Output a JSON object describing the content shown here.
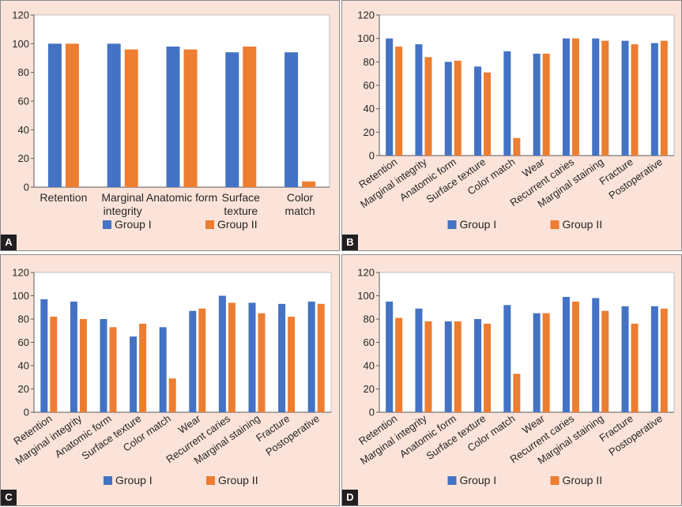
{
  "colors": {
    "group1": "#4472c4",
    "group2": "#ed7d31"
  },
  "panels": [
    {
      "letter": "A"
    },
    {
      "letter": "B"
    },
    {
      "letter": "C"
    },
    {
      "letter": "D"
    }
  ],
  "chart_data": [
    {
      "panel": "A",
      "type": "bar",
      "categories": [
        "Retention",
        "Marginal integrity",
        "Anatomic form",
        "Surface texture",
        "Color match"
      ],
      "category_label_lines": [
        [
          "Retention"
        ],
        [
          "Marginal",
          "integrity"
        ],
        [
          "Anatomic form"
        ],
        [
          "Surface",
          "texture"
        ],
        [
          "Color",
          "match"
        ]
      ],
      "series": [
        {
          "name": "Group I",
          "values": [
            100,
            100,
            98,
            94,
            94
          ]
        },
        {
          "name": "Group II",
          "values": [
            100,
            96,
            96,
            98,
            4
          ]
        }
      ],
      "ylim": [
        0,
        120
      ],
      "yticks": [
        0,
        20,
        40,
        60,
        80,
        100,
        120
      ],
      "grid": false,
      "legend": "bottom"
    },
    {
      "panel": "B",
      "type": "bar",
      "categories": [
        "Retention",
        "Marginal integrity",
        "Anatomic form",
        "Surface texture",
        "Color match",
        "Wear",
        "Recurrent caries",
        "Marginal staining",
        "Fracture",
        "Postoperative"
      ],
      "series": [
        {
          "name": "Group I",
          "values": [
            100,
            95,
            80,
            76,
            89,
            87,
            100,
            100,
            98,
            96
          ]
        },
        {
          "name": "Group II",
          "values": [
            93,
            84,
            81,
            71,
            15,
            87,
            100,
            98,
            95,
            98
          ]
        }
      ],
      "ylim": [
        0,
        120
      ],
      "yticks": [
        0,
        20,
        40,
        60,
        80,
        100,
        120
      ],
      "grid": false,
      "legend": "bottom"
    },
    {
      "panel": "C",
      "type": "bar",
      "categories": [
        "Retention",
        "Marginal integrity",
        "Anatomic form",
        "Surface texture",
        "Color match",
        "Wear",
        "Recurrent caries",
        "Marginal staining",
        "Fracture",
        "Postoperative"
      ],
      "series": [
        {
          "name": "Group I",
          "values": [
            97,
            95,
            80,
            65,
            73,
            87,
            100,
            94,
            93,
            95
          ]
        },
        {
          "name": "Group II",
          "values": [
            82,
            80,
            73,
            76,
            29,
            89,
            94,
            85,
            82,
            93
          ]
        }
      ],
      "ylim": [
        0,
        120
      ],
      "yticks": [
        0,
        20,
        40,
        60,
        80,
        100,
        120
      ],
      "grid": false,
      "legend": "bottom"
    },
    {
      "panel": "D",
      "type": "bar",
      "categories": [
        "Retention",
        "Marginal integrity",
        "Anatomic form",
        "Surface texture",
        "Color match",
        "Wear",
        "Recurrent caries",
        "Marginal staining",
        "Fracture",
        "Postoperative"
      ],
      "series": [
        {
          "name": "Group I",
          "values": [
            95,
            89,
            78,
            80,
            92,
            85,
            99,
            98,
            91,
            91
          ]
        },
        {
          "name": "Group II",
          "values": [
            81,
            78,
            78,
            76,
            33,
            85,
            95,
            87,
            76,
            89
          ]
        }
      ],
      "ylim": [
        0,
        120
      ],
      "yticks": [
        0,
        20,
        40,
        60,
        80,
        100,
        120
      ],
      "grid": false,
      "legend": "bottom"
    }
  ]
}
